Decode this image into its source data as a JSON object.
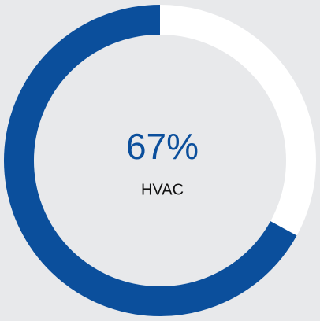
{
  "chart_data": {
    "type": "donut",
    "categories": [
      "HVAC"
    ],
    "values": [
      67
    ],
    "value_labels": [
      "67%"
    ],
    "color": "#0b4f9c",
    "remainder_color": "#ffffff"
  }
}
